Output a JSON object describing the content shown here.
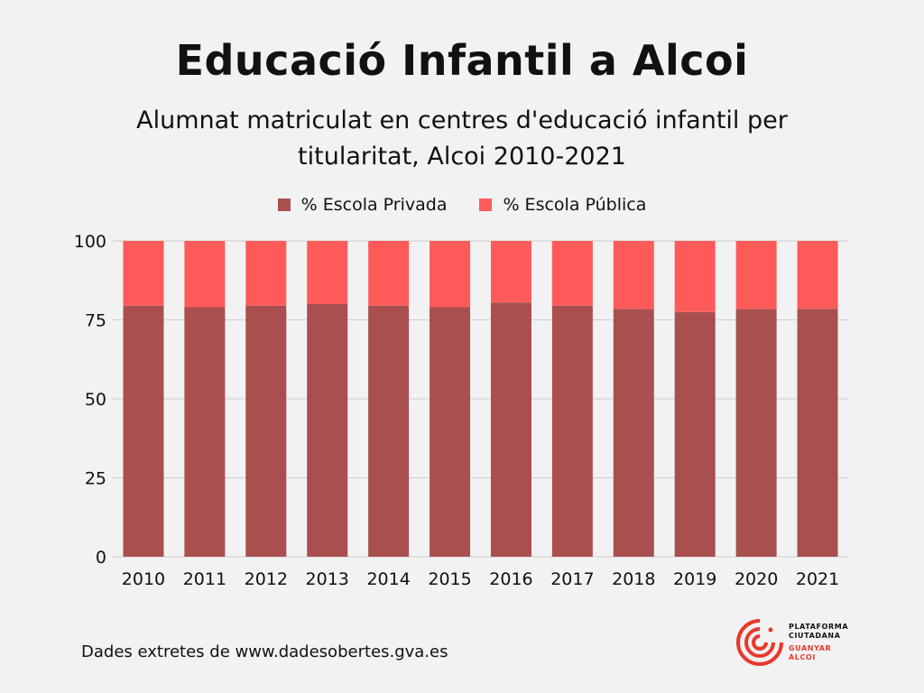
{
  "title": "Educació Infantil a Alcoi",
  "subtitle": "Alumnat matriculat en centres d'educació infantil per titularitat, Alcoi 2010-2021",
  "footer": "Dades extretes de www.dadesobertes.gva.es",
  "logo": {
    "line1": "PLATAFORMA",
    "line2": "CIUTADANA",
    "line3": "GUANYAR",
    "line4": "ALCOI"
  },
  "chart_data": {
    "type": "bar",
    "stacked": true,
    "categories": [
      "2010",
      "2011",
      "2012",
      "2013",
      "2014",
      "2015",
      "2016",
      "2017",
      "2018",
      "2019",
      "2020",
      "2021"
    ],
    "series": [
      {
        "name": "% Escola Privada",
        "color": "#a94f4f",
        "values": [
          79.5,
          79,
          79.5,
          80,
          79.5,
          79,
          80.5,
          79.5,
          78.5,
          77.5,
          78.5,
          78.5
        ]
      },
      {
        "name": "% Escola Pública",
        "color": "#ff5a5a",
        "values": [
          20.5,
          21,
          20.5,
          20,
          20.5,
          21,
          19.5,
          20.5,
          21.5,
          22.5,
          21.5,
          21.5
        ]
      }
    ],
    "yticks": [
      0,
      25,
      50,
      75,
      100
    ],
    "ylim": [
      0,
      100
    ],
    "grid": true,
    "legend_position": "top-center"
  }
}
